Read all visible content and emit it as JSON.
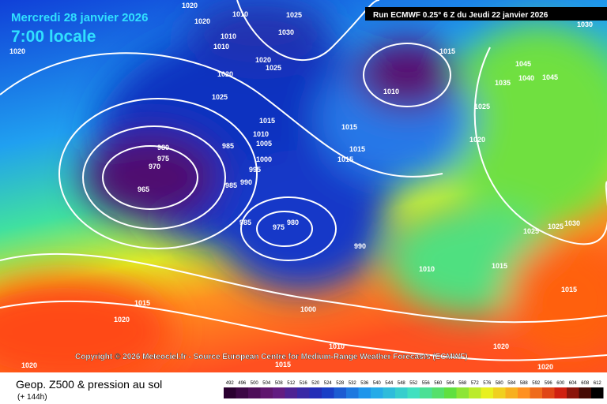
{
  "header": {
    "date": "Mercredi 28 janvier 2026",
    "time": "7:00 locale",
    "run": "Run ECMWF 0.25° 6 Z du Jeudi 22 janvier 2026"
  },
  "copyright": "Copyright © 2026 Meteociel.fr - Source European Centre for Medium-Range Weather Forecasts (ECMWF)",
  "footer": {
    "title": "Geop. Z500 & pression au sol",
    "lead": "(+ 144h)"
  },
  "colorbar": {
    "ticks": [
      492,
      496,
      500,
      504,
      508,
      512,
      516,
      520,
      524,
      528,
      532,
      536,
      540,
      544,
      548,
      552,
      556,
      560,
      564,
      568,
      572,
      576,
      580,
      584,
      588,
      592,
      596,
      600,
      604,
      608,
      612
    ]
  },
  "isobar_labels": [
    "1020",
    "1020",
    "1020",
    "1010",
    "1025",
    "1030",
    "1010",
    "1010",
    "1020",
    "1025",
    "1020",
    "1015",
    "1010",
    "1025",
    "1015",
    "1010",
    "1005",
    "1015",
    "1015",
    "1015",
    "980",
    "975",
    "970",
    "965",
    "985",
    "995",
    "990",
    "985",
    "1000",
    "985",
    "975",
    "980",
    "990",
    "1010",
    "1015",
    "1015",
    "1015",
    "1020",
    "1000",
    "1010",
    "1015",
    "1020",
    "1020",
    "1020",
    "1045",
    "1045",
    "1040",
    "1035",
    "1025",
    "1020",
    "1030",
    "1025",
    "1030",
    "1025"
  ]
}
